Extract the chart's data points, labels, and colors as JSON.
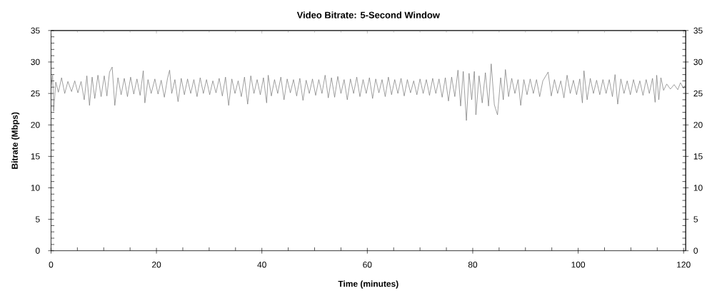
{
  "chart_data": {
    "type": "line",
    "title": "Video Bitrate: 5-Second Window",
    "xlabel": "Time (minutes)",
    "ylabel": "Bitrate (Mbps)",
    "color": "#707070",
    "x": [
      0.0,
      0.3,
      0.5,
      0.9,
      1.4,
      2.0,
      2.6,
      3.2,
      3.9,
      4.5,
      5.1,
      5.7,
      6.3,
      6.8,
      7.3,
      7.8,
      8.3,
      8.9,
      9.5,
      10.1,
      10.6,
      11.1,
      11.6,
      12.1,
      12.7,
      13.3,
      13.9,
      14.5,
      15.1,
      15.7,
      16.3,
      16.9,
      17.5,
      17.8,
      18.4,
      19.0,
      19.7,
      20.3,
      20.9,
      21.5,
      22.1,
      22.5,
      22.9,
      23.5,
      24.1,
      24.7,
      25.3,
      25.9,
      26.5,
      27.1,
      27.7,
      28.3,
      28.9,
      29.5,
      30.1,
      30.7,
      31.3,
      31.9,
      32.5,
      33.1,
      33.7,
      34.3,
      34.9,
      35.5,
      36.1,
      36.7,
      37.3,
      37.9,
      38.5,
      39.1,
      39.7,
      40.3,
      40.9,
      41.2,
      41.8,
      42.4,
      43.0,
      43.6,
      44.2,
      44.8,
      45.4,
      46.0,
      46.6,
      47.2,
      47.8,
      48.4,
      49.0,
      49.6,
      50.2,
      50.8,
      51.4,
      52.0,
      52.6,
      53.2,
      53.8,
      54.4,
      55.0,
      55.6,
      56.2,
      56.8,
      57.4,
      58.0,
      58.6,
      59.2,
      59.8,
      60.4,
      61.0,
      61.6,
      62.2,
      62.8,
      63.4,
      64.0,
      64.6,
      65.2,
      65.8,
      66.4,
      67.0,
      67.6,
      68.2,
      68.8,
      69.4,
      70.0,
      70.6,
      71.2,
      71.8,
      72.4,
      73.0,
      73.6,
      74.2,
      74.8,
      75.4,
      76.0,
      76.6,
      77.2,
      77.7,
      78.2,
      78.8,
      79.3,
      79.8,
      80.3,
      80.6,
      81.2,
      81.8,
      82.4,
      83.0,
      83.5,
      84.1,
      84.7,
      85.3,
      85.8,
      86.2,
      86.8,
      87.4,
      88.0,
      88.6,
      89.1,
      89.7,
      90.3,
      90.9,
      91.5,
      92.1,
      92.7,
      93.3,
      94.3,
      94.9,
      95.5,
      96.1,
      96.7,
      97.3,
      97.9,
      98.5,
      99.1,
      99.7,
      100.3,
      100.8,
      101.1,
      101.7,
      102.3,
      102.9,
      103.5,
      104.1,
      104.7,
      105.3,
      105.9,
      106.5,
      107.0,
      107.5,
      108.1,
      108.7,
      109.3,
      109.9,
      110.5,
      111.1,
      111.7,
      112.3,
      112.9,
      113.5,
      114.1,
      114.6,
      114.9,
      115.3,
      115.7,
      116.2,
      116.8,
      117.5,
      118.2,
      118.9,
      119.4,
      120.0,
      120.3
    ],
    "values": [
      26.0,
      27.9,
      22.2,
      26.8,
      25.2,
      27.5,
      25.0,
      26.9,
      25.3,
      27.0,
      25.1,
      26.9,
      24.0,
      27.8,
      23.1,
      27.6,
      24.2,
      27.9,
      24.5,
      27.8,
      24.6,
      28.4,
      29.2,
      23.1,
      27.5,
      24.8,
      27.4,
      24.5,
      27.6,
      24.9,
      27.3,
      24.7,
      28.6,
      23.5,
      27.2,
      25.0,
      27.3,
      24.9,
      27.1,
      24.4,
      27.4,
      28.7,
      25.0,
      27.2,
      23.7,
      27.4,
      24.8,
      27.3,
      25.0,
      27.2,
      24.5,
      27.5,
      25.0,
      27.2,
      24.8,
      27.0,
      25.1,
      27.4,
      24.6,
      27.6,
      23.1,
      27.3,
      25.0,
      27.0,
      24.5,
      27.6,
      23.3,
      27.8,
      25.0,
      27.2,
      24.8,
      27.5,
      23.5,
      27.9,
      24.6,
      27.2,
      25.0,
      27.6,
      24.0,
      27.3,
      25.1,
      27.2,
      24.6,
      27.4,
      23.9,
      27.1,
      25.0,
      27.3,
      24.7,
      27.2,
      25.0,
      27.9,
      24.3,
      27.5,
      24.4,
      27.7,
      25.0,
      27.2,
      24.0,
      27.3,
      25.0,
      27.6,
      24.5,
      27.2,
      25.0,
      27.5,
      24.2,
      27.3,
      25.1,
      27.2,
      24.5,
      27.6,
      24.8,
      27.2,
      25.0,
      27.4,
      24.6,
      27.2,
      25.1,
      27.0,
      24.8,
      27.3,
      25.0,
      27.2,
      24.7,
      27.4,
      25.0,
      27.3,
      24.4,
      27.5,
      23.8,
      27.6,
      24.5,
      28.7,
      23.0,
      28.5,
      20.7,
      28.2,
      24.0,
      28.5,
      21.6,
      27.8,
      23.5,
      28.3,
      23.0,
      29.7,
      23.2,
      21.6,
      27.5,
      24.0,
      28.8,
      24.5,
      27.4,
      25.0,
      27.2,
      23.1,
      27.2,
      24.8,
      27.3,
      25.0,
      27.2,
      24.5,
      27.0,
      28.4,
      24.6,
      27.2,
      25.0,
      27.0,
      24.3,
      27.9,
      25.0,
      27.1,
      24.8,
      27.3,
      23.5,
      28.6,
      24.0,
      27.4,
      25.0,
      27.1,
      24.8,
      27.2,
      25.0,
      27.2,
      24.5,
      28.0,
      23.3,
      27.3,
      25.0,
      27.0,
      24.8,
      27.2,
      25.1,
      27.0,
      24.7,
      27.2,
      25.0,
      27.4,
      23.6,
      27.9,
      24.0,
      27.5,
      25.5,
      26.5,
      25.7,
      26.4,
      25.6,
      26.7,
      25.8,
      26.3
    ],
    "xlim": [
      0,
      120.4
    ],
    "xticks": [
      0,
      {
        "value": 5,
        "label": null
      },
      {
        "value": 10,
        "label": null
      },
      {
        "value": 15,
        "label": null
      },
      20,
      {
        "value": 25,
        "label": null
      },
      {
        "value": 30,
        "label": null
      },
      {
        "value": 35,
        "label": null
      },
      40,
      {
        "value": 45,
        "label": null
      },
      {
        "value": 50,
        "label": null
      },
      {
        "value": 55,
        "label": null
      },
      60,
      {
        "value": 65,
        "label": null
      },
      {
        "value": 70,
        "label": null
      },
      {
        "value": 75,
        "label": null
      },
      80,
      {
        "value": 85,
        "label": null
      },
      {
        "value": 90,
        "label": null
      },
      {
        "value": 95,
        "label": null
      },
      100,
      {
        "value": 105,
        "label": null
      },
      {
        "value": 110,
        "label": null
      },
      {
        "value": 115,
        "label": null
      },
      120
    ],
    "ylim": [
      0,
      35
    ],
    "yticks": [
      0,
      {
        "value": 1,
        "label": null
      },
      {
        "value": 2,
        "label": null
      },
      {
        "value": 3,
        "label": null
      },
      {
        "value": 4,
        "label": null
      },
      5,
      {
        "value": 6,
        "label": null
      },
      {
        "value": 7,
        "label": null
      },
      {
        "value": 8,
        "label": null
      },
      {
        "value": 9,
        "label": null
      },
      10,
      {
        "value": 11,
        "label": null
      },
      {
        "value": 12,
        "label": null
      },
      {
        "value": 13,
        "label": null
      },
      {
        "value": 14,
        "label": null
      },
      15,
      {
        "value": 16,
        "label": null
      },
      {
        "value": 17,
        "label": null
      },
      {
        "value": 18,
        "label": null
      },
      {
        "value": 19,
        "label": null
      },
      20,
      {
        "value": 21,
        "label": null
      },
      {
        "value": 22,
        "label": null
      },
      {
        "value": 23,
        "label": null
      },
      {
        "value": 24,
        "label": null
      },
      25,
      {
        "value": 26,
        "label": null
      },
      {
        "value": 27,
        "label": null
      },
      {
        "value": 28,
        "label": null
      },
      {
        "value": 29,
        "label": null
      },
      30,
      {
        "value": 31,
        "label": null
      },
      {
        "value": 32,
        "label": null
      },
      {
        "value": 33,
        "label": null
      },
      {
        "value": 34,
        "label": null
      },
      35
    ],
    "y2lim": [
      0,
      35
    ],
    "y2ticks": [
      0,
      {
        "value": 1,
        "label": null
      },
      {
        "value": 2,
        "label": null
      },
      {
        "value": 3,
        "label": null
      },
      {
        "value": 4,
        "label": null
      },
      5,
      {
        "value": 6,
        "label": null
      },
      {
        "value": 7,
        "label": null
      },
      {
        "value": 8,
        "label": null
      },
      {
        "value": 9,
        "label": null
      },
      10,
      {
        "value": 11,
        "label": null
      },
      {
        "value": 12,
        "label": null
      },
      {
        "value": 13,
        "label": null
      },
      {
        "value": 14,
        "label": null
      },
      15,
      {
        "value": 16,
        "label": null
      },
      {
        "value": 17,
        "label": null
      },
      {
        "value": 18,
        "label": null
      },
      {
        "value": 19,
        "label": null
      },
      20,
      {
        "value": 21,
        "label": null
      },
      {
        "value": 22,
        "label": null
      },
      {
        "value": 23,
        "label": null
      },
      {
        "value": 24,
        "label": null
      },
      25,
      {
        "value": 26,
        "label": null
      },
      {
        "value": 27,
        "label": null
      },
      {
        "value": 28,
        "label": null
      },
      {
        "value": 29,
        "label": null
      },
      30,
      {
        "value": 31,
        "label": null
      },
      {
        "value": 32,
        "label": null
      },
      {
        "value": 33,
        "label": null
      },
      {
        "value": 34,
        "label": null
      },
      35
    ]
  }
}
